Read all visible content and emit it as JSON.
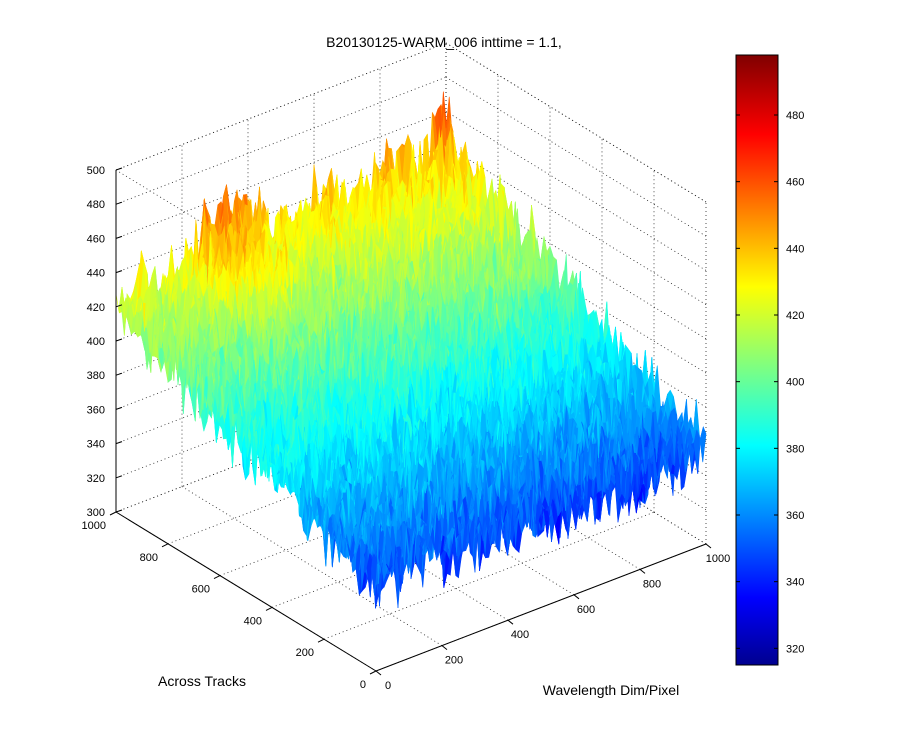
{
  "chart_data": {
    "type": "surface3d",
    "title": "B20130125-WARM_006 inttime = 1.1,",
    "xlabel": "Wavelength Dim/Pixel",
    "ylabel": "Across Tracks",
    "zlabel": "",
    "xlim": [
      0,
      1000
    ],
    "ylim": [
      0,
      1000
    ],
    "zlim": [
      300,
      500
    ],
    "x_ticks": [
      "0",
      "200",
      "400",
      "600",
      "800",
      "1000"
    ],
    "y_ticks": [
      "0",
      "200",
      "400",
      "600",
      "800",
      "1000"
    ],
    "z_ticks": [
      "300",
      "320",
      "340",
      "360",
      "380",
      "400",
      "420",
      "440",
      "460",
      "480",
      "500"
    ],
    "colorbar": {
      "colormap": "jet",
      "range": [
        315,
        498
      ],
      "ticks": [
        "320",
        "340",
        "360",
        "380",
        "400",
        "420",
        "440",
        "460",
        "480"
      ]
    },
    "surface_trend": {
      "corner_values": {
        "x0_y0": 355,
        "x1000_y0": 352,
        "x0_y1000": 420,
        "x1000_y1000": 440
      },
      "hotspot": {
        "x": 330,
        "y": 1000,
        "value": 465
      },
      "spike": {
        "x": 1000,
        "y": 1000,
        "value": 470
      },
      "noise_amplitude": 22
    },
    "grid": true
  }
}
